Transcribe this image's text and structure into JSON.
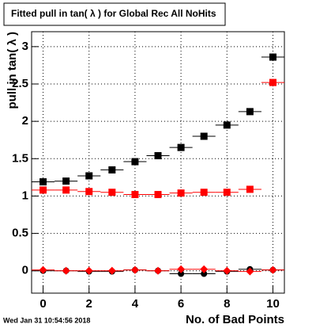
{
  "chart_data": {
    "type": "scatter",
    "title": "Fitted pull in tan( λ ) for Global Rec All NoHits",
    "x_label": "No. of Bad Points",
    "y_label": "pull in tan( λ )",
    "footer": "Wed Jan 31 10:54:56 2018",
    "x": [
      0,
      1,
      2,
      3,
      4,
      5,
      6,
      7,
      8,
      9,
      10
    ],
    "series": [
      {
        "color": "#000000",
        "marker": "square",
        "values": [
          1.19,
          1.2,
          1.27,
          1.35,
          1.46,
          1.54,
          1.65,
          1.8,
          1.95,
          2.13,
          2.86
        ]
      },
      {
        "color": "#ff0000",
        "marker": "square",
        "values": [
          1.08,
          1.08,
          1.06,
          1.05,
          1.02,
          1.02,
          1.04,
          1.05,
          1.05,
          1.09,
          2.52
        ]
      },
      {
        "color": "#000000",
        "marker": "circle",
        "values": [
          0,
          0,
          -0.01,
          -0.01,
          0.01,
          0,
          -0.04,
          -0.04,
          -0.01,
          0.02,
          0.01
        ]
      },
      {
        "color": "#ff0000",
        "marker": "diamond",
        "values": [
          0.01,
          0,
          0,
          0,
          0.01,
          0,
          0.02,
          0.02,
          0,
          -0.01,
          0.01
        ]
      }
    ],
    "xlim": [
      -0.5,
      10.5
    ],
    "xticks": [
      0,
      2,
      4,
      6,
      8,
      10
    ],
    "ylim": [
      -0.3,
      3.2
    ],
    "yticks": [
      0,
      0.5,
      1,
      1.5,
      2,
      2.5,
      3
    ],
    "grid": true
  }
}
